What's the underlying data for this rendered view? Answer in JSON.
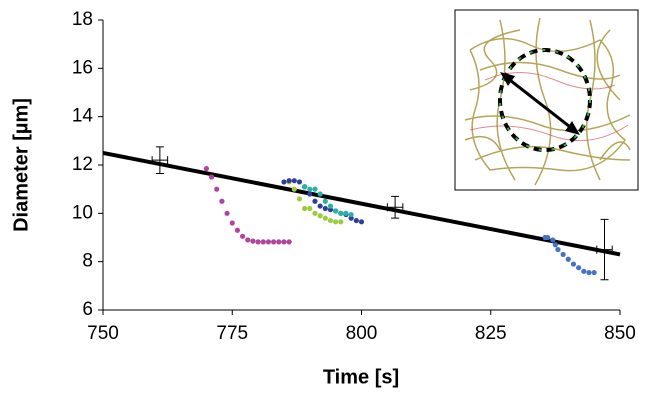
{
  "chart_data": {
    "type": "scatter",
    "x_label": "Time [s]",
    "y_label": "Diameter [µm]",
    "xlim": [
      750,
      850
    ],
    "xticks": [
      750,
      775,
      800,
      825,
      850
    ],
    "ylim": [
      6,
      18
    ],
    "yticks": [
      6,
      8,
      10,
      12,
      14,
      16,
      18
    ],
    "fit_line": {
      "color": "#000000",
      "x": [
        750,
        850
      ],
      "y": [
        12.5,
        8.3
      ]
    },
    "error_bars": {
      "color": "#000000",
      "x": [
        761,
        806.5,
        847
      ],
      "y": [
        12.2,
        10.25,
        8.5
      ],
      "yerr": [
        0.55,
        0.45,
        1.25
      ],
      "xerr": [
        1.5,
        1.5,
        1.5
      ]
    },
    "series": [
      {
        "color": "#b0449e",
        "x": [
          770,
          771,
          772,
          773,
          774,
          775,
          776,
          777,
          778,
          779,
          780,
          781,
          782,
          783,
          784,
          785,
          786
        ],
        "values": [
          11.85,
          11.5,
          11.0,
          10.5,
          10.0,
          9.6,
          9.3,
          9.05,
          8.9,
          8.85,
          8.82,
          8.82,
          8.82,
          8.82,
          8.82,
          8.82,
          8.82
        ]
      },
      {
        "color": "#9ccc3c",
        "x": [
          786,
          787,
          788,
          789,
          790,
          791,
          792,
          793,
          794,
          795,
          796
        ],
        "values": [
          11.3,
          11.0,
          10.6,
          10.2,
          10.2,
          10.0,
          9.9,
          9.8,
          9.7,
          9.65,
          9.65
        ]
      },
      {
        "color": "#2e3f9a",
        "x": [
          785,
          786,
          787,
          788,
          789,
          790,
          791,
          792,
          793,
          794,
          795,
          796,
          797,
          798,
          799,
          800
        ],
        "values": [
          11.3,
          11.35,
          11.35,
          11.3,
          11.1,
          10.8,
          10.5,
          10.3,
          10.2,
          10.15,
          10.1,
          10.0,
          9.95,
          9.8,
          9.7,
          9.65
        ]
      },
      {
        "color": "#26b3a3",
        "x": [
          789,
          790,
          791,
          792,
          793,
          794,
          795,
          796,
          797,
          798
        ],
        "values": [
          11.1,
          11.0,
          11.0,
          10.8,
          10.5,
          10.3,
          10.1,
          10.0,
          10.0,
          9.95
        ]
      },
      {
        "color": "#4472c4",
        "x": [
          835.5,
          836,
          837,
          837.5,
          838,
          839,
          840,
          841,
          842,
          843,
          844,
          845
        ],
        "values": [
          9.0,
          9.0,
          8.9,
          8.7,
          8.5,
          8.3,
          8.1,
          7.9,
          7.75,
          7.6,
          7.55,
          7.55
        ]
      }
    ]
  }
}
